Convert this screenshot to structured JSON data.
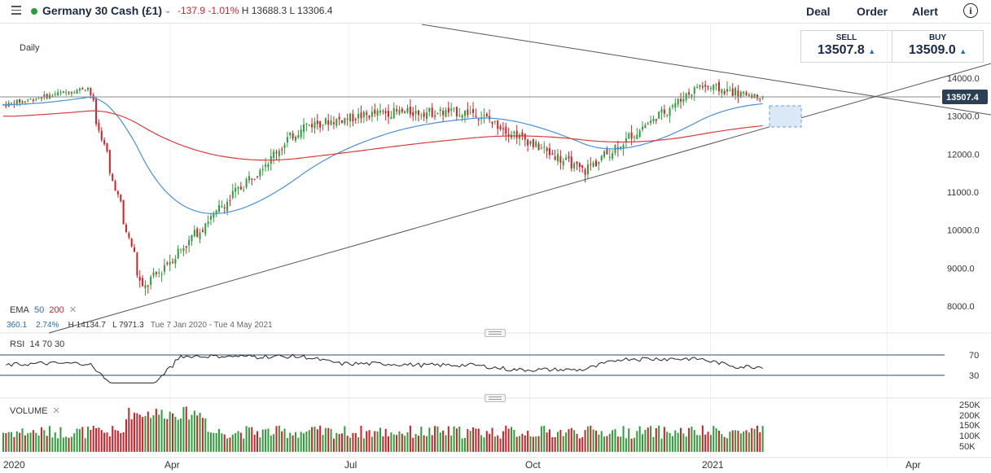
{
  "header": {
    "menu_icon": "hamburger-icon",
    "instrument": "Germany 30 Cash (£1)",
    "change": "-137.9",
    "change_pct": "-1.01%",
    "high": "H 13688.3",
    "low": "L 13306.4",
    "actions": [
      "Deal",
      "Order",
      "Alert"
    ],
    "info_icon": "info-icon",
    "live_color": "#2a9d3a"
  },
  "deal": {
    "sell_label": "SELL",
    "sell_price": "13507.8",
    "buy_label": "BUY",
    "buy_price": "13509.0",
    "tri": "▲"
  },
  "chart": {
    "interval": "Daily",
    "current_price_tag": "13507.4",
    "price_ticks": [
      "14000.0",
      "13000.0",
      "12000.0",
      "11000.0",
      "10000.0",
      "9000.0",
      "8000.0"
    ],
    "x_ticks": [
      "2020",
      "Apr",
      "Jul",
      "Oct",
      "2021",
      "Apr"
    ],
    "ema_label": "EMA",
    "ema_fast": "50",
    "ema_slow": "200",
    "ema_values": [
      "360.1",
      "2.74%"
    ],
    "range_high": "H 14134.7",
    "range_low": "L 7971.3",
    "range_dates": "Tue 7 Jan 2020 - Tue 4 May 2021",
    "close_glyph": "✕",
    "up_color": "#2e9d3a",
    "down_color": "#d0202a",
    "ema50_color": "#4a90d9",
    "ema200_color": "#d93b3b"
  },
  "rsi": {
    "label": "RSI",
    "params": "14 70 30",
    "levels": [
      "70",
      "30"
    ]
  },
  "volume": {
    "label": "VOLUME",
    "ticks": [
      "250K",
      "200K",
      "150K",
      "100K",
      "50K"
    ]
  },
  "chart_data": {
    "type": "candlestick",
    "instrument": "Germany 30 Cash (£1)",
    "interval": "Daily",
    "x_range": [
      "2020-01-07",
      "2021-05-04"
    ],
    "y_range": [
      7971.3,
      14134.7
    ],
    "price_axis_ticks": [
      8000,
      9000,
      10000,
      11000,
      12000,
      13000,
      14000
    ],
    "last_price": 13507.4,
    "approx_closes": [
      {
        "date": "2020-01-07",
        "close": 13300
      },
      {
        "date": "2020-02-19",
        "close": 13750
      },
      {
        "date": "2020-03-18",
        "close": 8450
      },
      {
        "date": "2020-04-30",
        "close": 10750
      },
      {
        "date": "2020-06-08",
        "close": 12750
      },
      {
        "date": "2020-07-20",
        "close": 13100
      },
      {
        "date": "2020-09-04",
        "close": 13100
      },
      {
        "date": "2020-10-30",
        "close": 11550
      },
      {
        "date": "2020-12-28",
        "close": 13800
      },
      {
        "date": "2021-01-29",
        "close": 13507
      }
    ],
    "indicators": {
      "EMA": [
        50,
        200
      ],
      "RSI": {
        "period": 14,
        "upper": 70,
        "lower": 30
      }
    },
    "volume_axis_ticks": [
      50000,
      100000,
      150000,
      200000,
      250000
    ]
  }
}
